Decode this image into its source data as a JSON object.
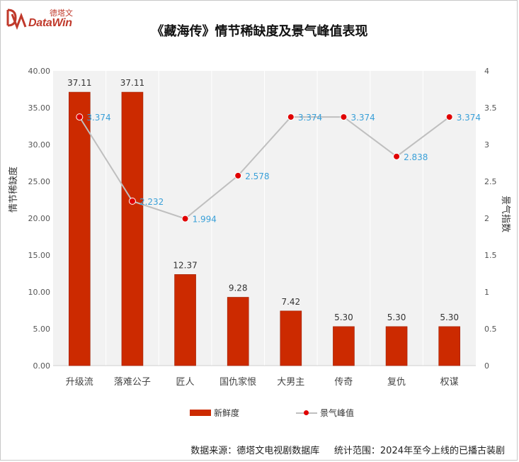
{
  "brand": {
    "cn": "德塔文",
    "en": "DataWin"
  },
  "footer": {
    "source": "数据来源：德塔文电视剧数据库",
    "scope": "统计范围：2024年至今上线的已播古装剧"
  },
  "colors": {
    "bar": "#cc2a00",
    "line": "#bfbfbf",
    "marker": "#e00000",
    "line_label": "#3aa0d8"
  },
  "chart_data": {
    "type": "bar",
    "title": "《藏海传》情节稀缺度及景气峰值表现",
    "categories": [
      "升级流",
      "落难公子",
      "匠人",
      "国仇家恨",
      "大男主",
      "传奇",
      "复仇",
      "权谋"
    ],
    "series": [
      {
        "name": "新鲜度",
        "type": "bar",
        "axis": "left",
        "values": [
          37.11,
          37.11,
          12.37,
          9.28,
          7.42,
          5.3,
          5.3,
          5.3
        ],
        "labels": [
          "37.11",
          "37.11",
          "12.37",
          "9.28",
          "7.42",
          "5.30",
          "5.30",
          "5.30"
        ]
      },
      {
        "name": "景气峰值",
        "type": "line",
        "axis": "right",
        "values": [
          3.374,
          2.232,
          1.994,
          2.578,
          3.374,
          3.374,
          2.838,
          3.374
        ],
        "labels": [
          "3.374",
          "2.232",
          "1.994",
          "2.578",
          "3.374",
          "3.374",
          "2.838",
          "3.374"
        ]
      }
    ],
    "ylabel_left": "情节稀缺度",
    "ylabel_right": "景气指数",
    "ylim_left": [
      0,
      40
    ],
    "ylim_right": [
      0,
      4
    ],
    "yticks_left": [
      "0.00",
      "5.00",
      "10.00",
      "15.00",
      "20.00",
      "25.00",
      "30.00",
      "35.00",
      "40.00"
    ],
    "yticks_right": [
      "0",
      "0.5",
      "1",
      "1.5",
      "2",
      "2.5",
      "3",
      "3.5",
      "4"
    ],
    "grid": "vertical",
    "legend": "bottom"
  }
}
